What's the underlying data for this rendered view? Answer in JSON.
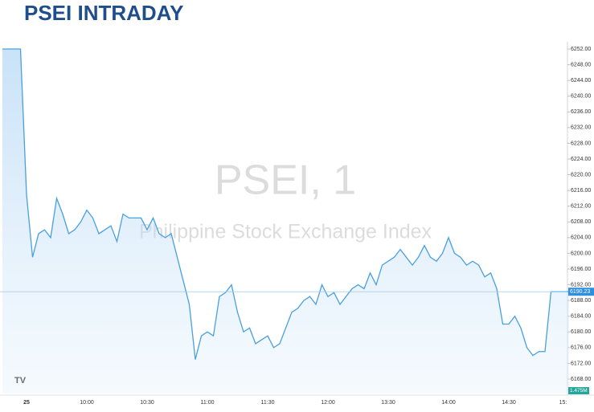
{
  "chart_data": {
    "type": "line",
    "title": "PSEI INTRADAY",
    "watermark_title": "PSEI, 1",
    "watermark_subtitle": "Philippine Stock Exchange Index",
    "categories": [
      null,
      null,
      null,
      null,
      "25",
      null,
      null,
      null,
      null,
      null,
      null,
      null,
      null,
      null,
      "10:00",
      null,
      null,
      null,
      null,
      null,
      null,
      null,
      null,
      null,
      "10:30",
      null,
      null,
      null,
      null,
      null,
      null,
      null,
      null,
      null,
      "11:00",
      null,
      null,
      null,
      null,
      null,
      null,
      null,
      null,
      null,
      "11:30",
      null,
      null,
      null,
      null,
      null,
      null,
      null,
      null,
      null,
      "12:00",
      null,
      null,
      null,
      null,
      null,
      null,
      null,
      null,
      null,
      "13:30",
      null,
      null,
      null,
      null,
      null,
      null,
      null,
      null,
      null,
      "14:00",
      null,
      null,
      null,
      null,
      null,
      null,
      null,
      null,
      null,
      "14:30",
      null,
      null,
      null,
      null,
      null,
      null,
      null,
      null,
      "15:",
      null
    ],
    "series": [
      {
        "name": "PSEI",
        "color": "#4a9fe0",
        "values": [
          6252,
          6252,
          6252,
          6252,
          6215,
          6199,
          6205,
          6206,
          6204,
          6214,
          6210,
          6205,
          6206,
          6208,
          6211,
          6209,
          6205,
          6206,
          6207,
          6203,
          6210,
          6209,
          6209,
          6209,
          6206,
          6209,
          6205,
          6204,
          6205,
          6199,
          6193,
          6187,
          6173,
          6179,
          6180,
          6179,
          6189,
          6190,
          6192,
          6185,
          6180,
          6181,
          6177,
          6178,
          6179,
          6176,
          6177,
          6181,
          6185,
          6186,
          6188,
          6189,
          6187,
          6192,
          6189,
          6190,
          6187,
          6189,
          6191,
          6192,
          6191,
          6195,
          6192,
          6197,
          6198,
          6199,
          6201,
          6199,
          6197,
          6199,
          6202,
          6199,
          6198,
          6200,
          6204,
          6200,
          6199,
          6197,
          6198,
          6197,
          6194,
          6195,
          6191,
          6182,
          6182,
          6184,
          6181,
          6176,
          6174,
          6175,
          6175,
          6190.23,
          6190.23,
          6190.23,
          6190.23
        ]
      }
    ],
    "last_price": 6190.23,
    "volume_label": "1.475M",
    "ylim": [
      6168,
      6252
    ],
    "yticks": [
      {
        "value": 6168,
        "label": "6168.00"
      },
      {
        "value": 6172,
        "label": "6172.00"
      },
      {
        "value": 6176,
        "label": "6176.00"
      },
      {
        "value": 6180,
        "label": "6180.00"
      },
      {
        "value": 6184,
        "label": "6184.00"
      },
      {
        "value": 6188,
        "label": "6188.00"
      },
      {
        "value": 6192,
        "label": "6192.00"
      },
      {
        "value": 6196,
        "label": "6196.00"
      },
      {
        "value": 6200,
        "label": "6200.00"
      },
      {
        "value": 6204,
        "label": "6204.00"
      },
      {
        "value": 6208,
        "label": "6208.00"
      },
      {
        "value": 6212,
        "label": "6212.00"
      },
      {
        "value": 6216,
        "label": "6216.00"
      },
      {
        "value": 6220,
        "label": "6220.00"
      },
      {
        "value": 6224,
        "label": "6224.00"
      },
      {
        "value": 6228,
        "label": "6228.00"
      },
      {
        "value": 6232,
        "label": "6232.00"
      },
      {
        "value": 6236,
        "label": "6236.00"
      },
      {
        "value": 6240,
        "label": "6240.00"
      },
      {
        "value": 6244,
        "label": "6244.00"
      },
      {
        "value": 6248,
        "label": "6248.00"
      },
      {
        "value": 6252,
        "label": "6252.00"
      }
    ],
    "grid": false
  }
}
